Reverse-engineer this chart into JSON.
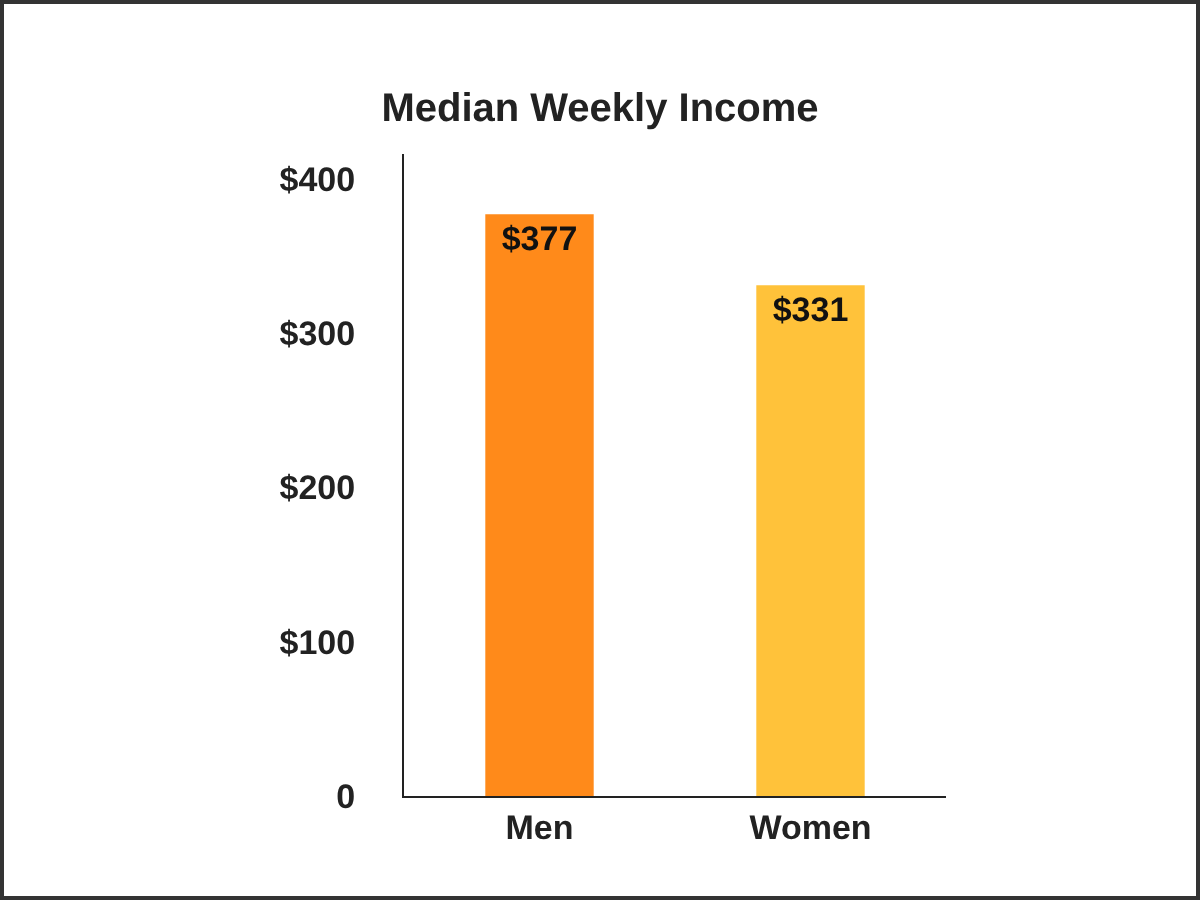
{
  "chart_data": {
    "type": "bar",
    "title": "Median Weekly Income",
    "categories": [
      "Men",
      "Women"
    ],
    "values": [
      377,
      331
    ],
    "colors": [
      "#ff8a1a",
      "#ffc23a"
    ],
    "value_labels": [
      "$377",
      "$331"
    ],
    "ylim": [
      0,
      416
    ],
    "yticks": [
      {
        "value": 0,
        "label": "0"
      },
      {
        "value": 100,
        "label": "$100"
      },
      {
        "value": 200,
        "label": "$200"
      },
      {
        "value": 300,
        "label": "$300"
      },
      {
        "value": 400,
        "label": "$400"
      }
    ],
    "grid": false
  }
}
